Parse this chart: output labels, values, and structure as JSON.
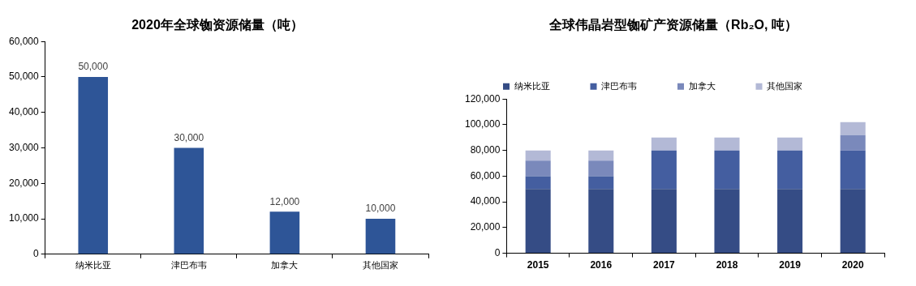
{
  "chart_data": [
    {
      "type": "bar",
      "title": "2020年全球铷资源储量（吨）",
      "categories": [
        "纳米比亚",
        "津巴布韦",
        "加拿大",
        "其他国家"
      ],
      "values": [
        50000,
        30000,
        12000,
        10000
      ],
      "color": "#2e5597",
      "value_labels": [
        "50,000",
        "30,000",
        "12,000",
        "10,000"
      ],
      "ylim": [
        0,
        60000
      ],
      "yticks": [
        {
          "value": 0,
          "label": "0"
        },
        {
          "value": 10000,
          "label": "10,000"
        },
        {
          "value": 20000,
          "label": "20,000"
        },
        {
          "value": 30000,
          "label": "30,000"
        },
        {
          "value": 40000,
          "label": "40,000"
        },
        {
          "value": 50000,
          "label": "50,000"
        },
        {
          "value": 60000,
          "label": "60,000"
        }
      ],
      "grid": false,
      "legend": false
    },
    {
      "type": "bar",
      "title": "全球伟晶岩型铷矿产资源储量（Rb₂O, 吨）",
      "categories": [
        "2015",
        "2016",
        "2017",
        "2018",
        "2019",
        "2020"
      ],
      "stacked": true,
      "series": [
        {
          "name": "纳米比亚",
          "color": "#354c85",
          "values": [
            50000,
            50000,
            50000,
            50000,
            50000,
            50000
          ]
        },
        {
          "name": "津巴布韦",
          "color": "#445ea0",
          "values": [
            10000,
            10000,
            30000,
            30000,
            30000,
            30000
          ]
        },
        {
          "name": "加拿大",
          "color": "#7a89bb",
          "values": [
            12000,
            12000,
            0,
            0,
            0,
            12000
          ]
        },
        {
          "name": "其他国家",
          "color": "#b3b9d6",
          "values": [
            8000,
            8000,
            10000,
            10000,
            10000,
            10000
          ]
        }
      ],
      "ylim": [
        0,
        120000
      ],
      "yticks": [
        {
          "value": 0,
          "label": "0"
        },
        {
          "value": 20000,
          "label": "20,000"
        },
        {
          "value": 40000,
          "label": "40,000"
        },
        {
          "value": 60000,
          "label": "60,000"
        },
        {
          "value": 80000,
          "label": "80,000"
        },
        {
          "value": 100000,
          "label": "100,000"
        },
        {
          "value": 120000,
          "label": "120,000"
        }
      ],
      "grid": false,
      "legend": "top"
    }
  ]
}
